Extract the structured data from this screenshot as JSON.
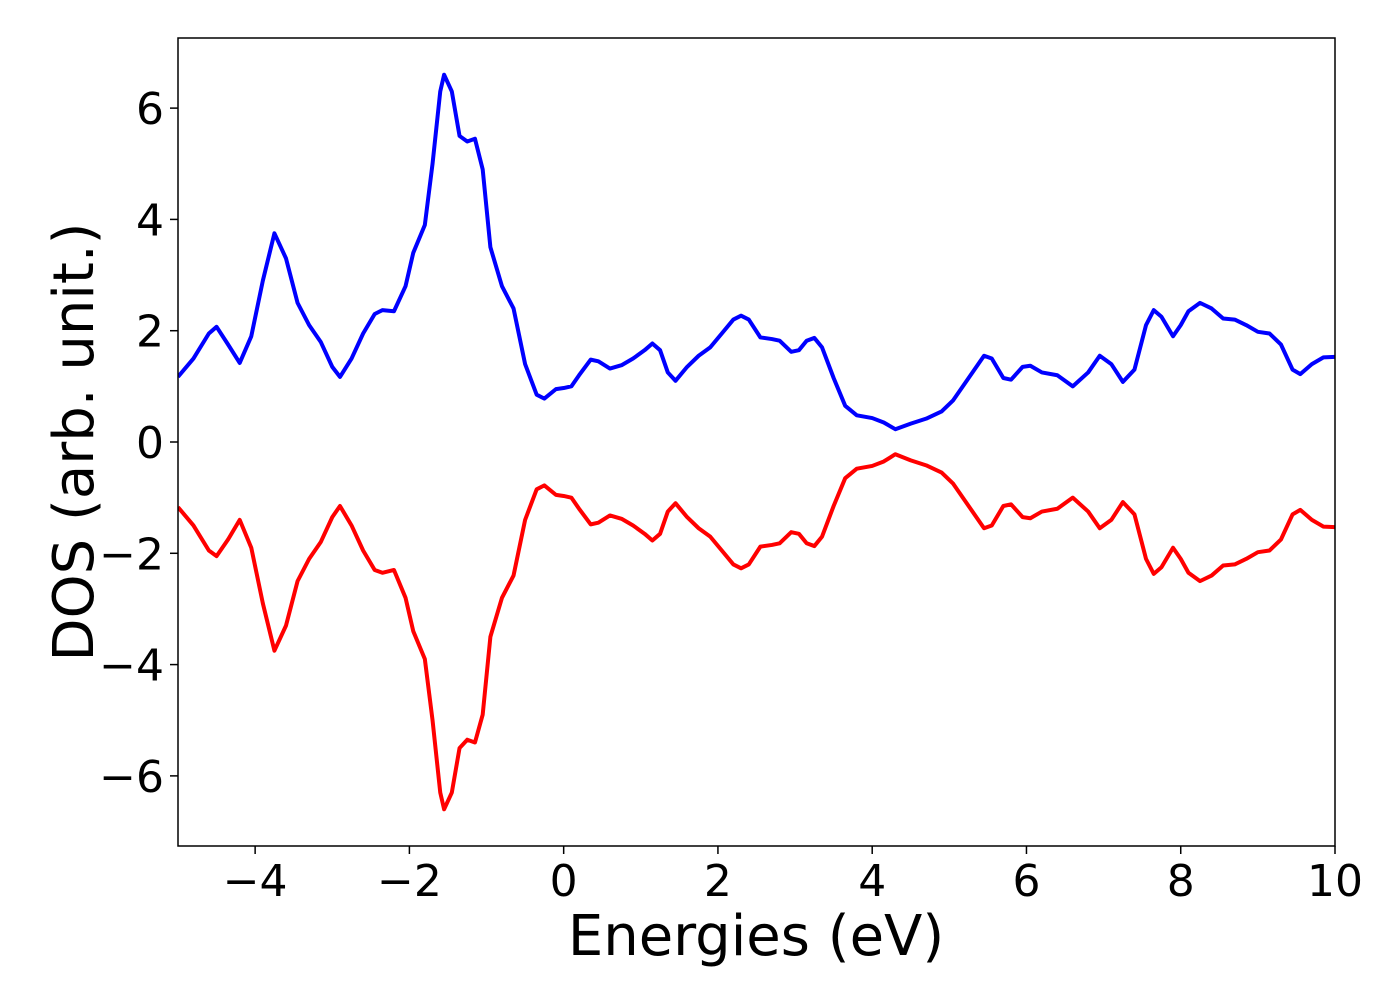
{
  "chart_data": {
    "type": "line",
    "x_label": "Energies (eV)",
    "y_label": "DOS (arb. unit.)",
    "xlim": [
      -5,
      10
    ],
    "ylim": [
      -7.26,
      7.26
    ],
    "xticks": [
      {
        "value": -4,
        "label": "−4"
      },
      {
        "value": -2,
        "label": "−2"
      },
      0,
      2,
      4,
      6,
      8,
      10
    ],
    "yticks": [
      {
        "value": -6,
        "label": "−6"
      },
      {
        "value": -4,
        "label": "−4"
      },
      {
        "value": -2,
        "label": "−2"
      },
      0,
      2,
      4,
      6
    ],
    "grid": false,
    "x": [
      -5.0,
      -4.8,
      -4.6,
      -4.5,
      -4.35,
      -4.2,
      -4.05,
      -3.9,
      -3.75,
      -3.6,
      -3.45,
      -3.3,
      -3.15,
      -3.0,
      -2.9,
      -2.75,
      -2.6,
      -2.45,
      -2.35,
      -2.2,
      -2.05,
      -1.95,
      -1.8,
      -1.7,
      -1.6,
      -1.55,
      -1.45,
      -1.35,
      -1.25,
      -1.15,
      -1.05,
      -0.95,
      -0.8,
      -0.65,
      -0.5,
      -0.35,
      -0.25,
      -0.1,
      0.0,
      0.1,
      0.2,
      0.35,
      0.45,
      0.6,
      0.75,
      0.9,
      1.05,
      1.15,
      1.25,
      1.35,
      1.45,
      1.6,
      1.75,
      1.9,
      2.05,
      2.2,
      2.3,
      2.4,
      2.55,
      2.7,
      2.8,
      2.95,
      3.05,
      3.15,
      3.25,
      3.35,
      3.5,
      3.65,
      3.8,
      4.0,
      4.15,
      4.3,
      4.5,
      4.7,
      4.9,
      5.05,
      5.25,
      5.45,
      5.55,
      5.7,
      5.8,
      5.95,
      6.05,
      6.2,
      6.4,
      6.6,
      6.8,
      6.95,
      7.1,
      7.25,
      7.4,
      7.55,
      7.65,
      7.75,
      7.9,
      8.0,
      8.1,
      8.25,
      8.4,
      8.55,
      8.7,
      8.85,
      9.0,
      9.15,
      9.3,
      9.45,
      9.55,
      9.7,
      9.85,
      10.0
    ],
    "series": [
      {
        "color": "#0000ff",
        "values": [
          1.17,
          1.5,
          1.95,
          2.07,
          1.75,
          1.42,
          1.9,
          2.9,
          3.75,
          3.3,
          2.5,
          2.1,
          1.8,
          1.35,
          1.17,
          1.5,
          1.95,
          2.3,
          2.37,
          2.35,
          2.8,
          3.4,
          3.9,
          5.0,
          6.3,
          6.6,
          6.3,
          5.5,
          5.4,
          5.45,
          4.9,
          3.5,
          2.8,
          2.4,
          1.4,
          0.85,
          0.78,
          0.95,
          0.97,
          1.0,
          1.2,
          1.48,
          1.45,
          1.32,
          1.38,
          1.5,
          1.65,
          1.77,
          1.65,
          1.25,
          1.1,
          1.35,
          1.55,
          1.7,
          1.95,
          2.2,
          2.27,
          2.2,
          1.88,
          1.85,
          1.82,
          1.62,
          1.65,
          1.82,
          1.87,
          1.7,
          1.15,
          0.65,
          0.48,
          0.43,
          0.35,
          0.23,
          0.33,
          0.42,
          0.55,
          0.75,
          1.15,
          1.55,
          1.5,
          1.15,
          1.12,
          1.35,
          1.37,
          1.25,
          1.2,
          1.0,
          1.25,
          1.55,
          1.4,
          1.08,
          1.3,
          2.1,
          2.37,
          2.25,
          1.9,
          2.1,
          2.35,
          2.5,
          2.4,
          2.22,
          2.2,
          2.1,
          1.98,
          1.95,
          1.75,
          1.3,
          1.22,
          1.4,
          1.52,
          1.53
        ]
      },
      {
        "color": "#ff0000",
        "values": [
          -1.17,
          -1.5,
          -1.95,
          -2.05,
          -1.75,
          -1.4,
          -1.9,
          -2.9,
          -3.75,
          -3.3,
          -2.5,
          -2.1,
          -1.8,
          -1.35,
          -1.15,
          -1.5,
          -1.95,
          -2.3,
          -2.35,
          -2.3,
          -2.8,
          -3.4,
          -3.9,
          -5.0,
          -6.3,
          -6.6,
          -6.3,
          -5.5,
          -5.35,
          -5.4,
          -4.9,
          -3.5,
          -2.8,
          -2.4,
          -1.4,
          -0.85,
          -0.78,
          -0.95,
          -0.97,
          -1.0,
          -1.2,
          -1.48,
          -1.45,
          -1.32,
          -1.38,
          -1.5,
          -1.65,
          -1.77,
          -1.65,
          -1.25,
          -1.1,
          -1.35,
          -1.55,
          -1.7,
          -1.95,
          -2.2,
          -2.27,
          -2.2,
          -1.88,
          -1.85,
          -1.82,
          -1.62,
          -1.65,
          -1.82,
          -1.87,
          -1.7,
          -1.15,
          -0.65,
          -0.48,
          -0.43,
          -0.35,
          -0.22,
          -0.33,
          -0.42,
          -0.55,
          -0.75,
          -1.15,
          -1.55,
          -1.5,
          -1.15,
          -1.12,
          -1.35,
          -1.37,
          -1.25,
          -1.2,
          -1.0,
          -1.25,
          -1.55,
          -1.4,
          -1.08,
          -1.3,
          -2.1,
          -2.37,
          -2.25,
          -1.9,
          -2.1,
          -2.35,
          -2.5,
          -2.4,
          -2.22,
          -2.2,
          -2.1,
          -1.98,
          -1.95,
          -1.75,
          -1.3,
          -1.22,
          -1.4,
          -1.52,
          -1.53
        ]
      }
    ]
  }
}
